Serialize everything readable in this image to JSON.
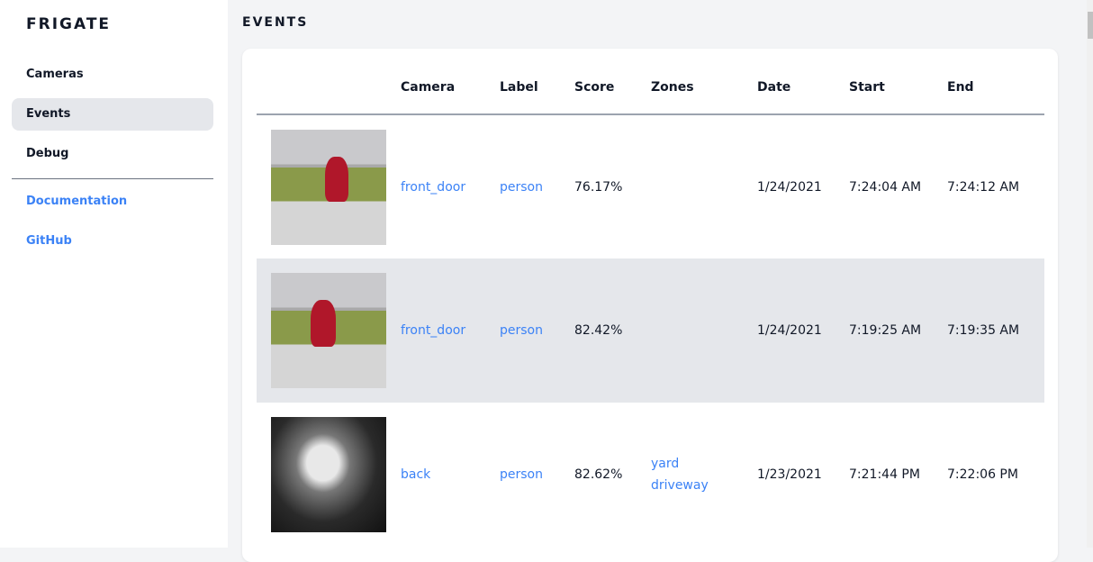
{
  "sidebar": {
    "brand": "FRIGATE",
    "items": [
      {
        "label": "Cameras"
      },
      {
        "label": "Events",
        "active": true
      },
      {
        "label": "Debug"
      }
    ],
    "links": [
      {
        "label": "Documentation"
      },
      {
        "label": "GitHub"
      }
    ]
  },
  "main": {
    "title": "EVENTS",
    "columns": [
      "",
      "Camera",
      "Label",
      "Score",
      "Zones",
      "Date",
      "Start",
      "End"
    ],
    "rows": [
      {
        "thumbnail": "front_door snapshot",
        "camera": "front_door",
        "label": "person",
        "score": "76.17%",
        "zones": [
          "",
          ""
        ],
        "date": "1/24/2021",
        "start": "7:24:04 AM",
        "end": "7:24:12 AM"
      },
      {
        "thumbnail": "front_door snapshot",
        "camera": "front_door",
        "label": "person",
        "score": "82.42%",
        "zones": [
          "",
          ""
        ],
        "date": "1/24/2021",
        "start": "7:19:25 AM",
        "end": "7:19:35 AM"
      },
      {
        "thumbnail": "back snapshot",
        "camera": "back",
        "label": "person",
        "score": "82.62%",
        "zones": [
          "yard",
          "driveway"
        ],
        "date": "1/23/2021",
        "start": "7:21:44 PM",
        "end": "7:22:06 PM"
      }
    ]
  },
  "colors": {
    "accent": "#3b82f6",
    "active_bg": "#e5e7eb",
    "page_bg": "#f3f4f6"
  }
}
